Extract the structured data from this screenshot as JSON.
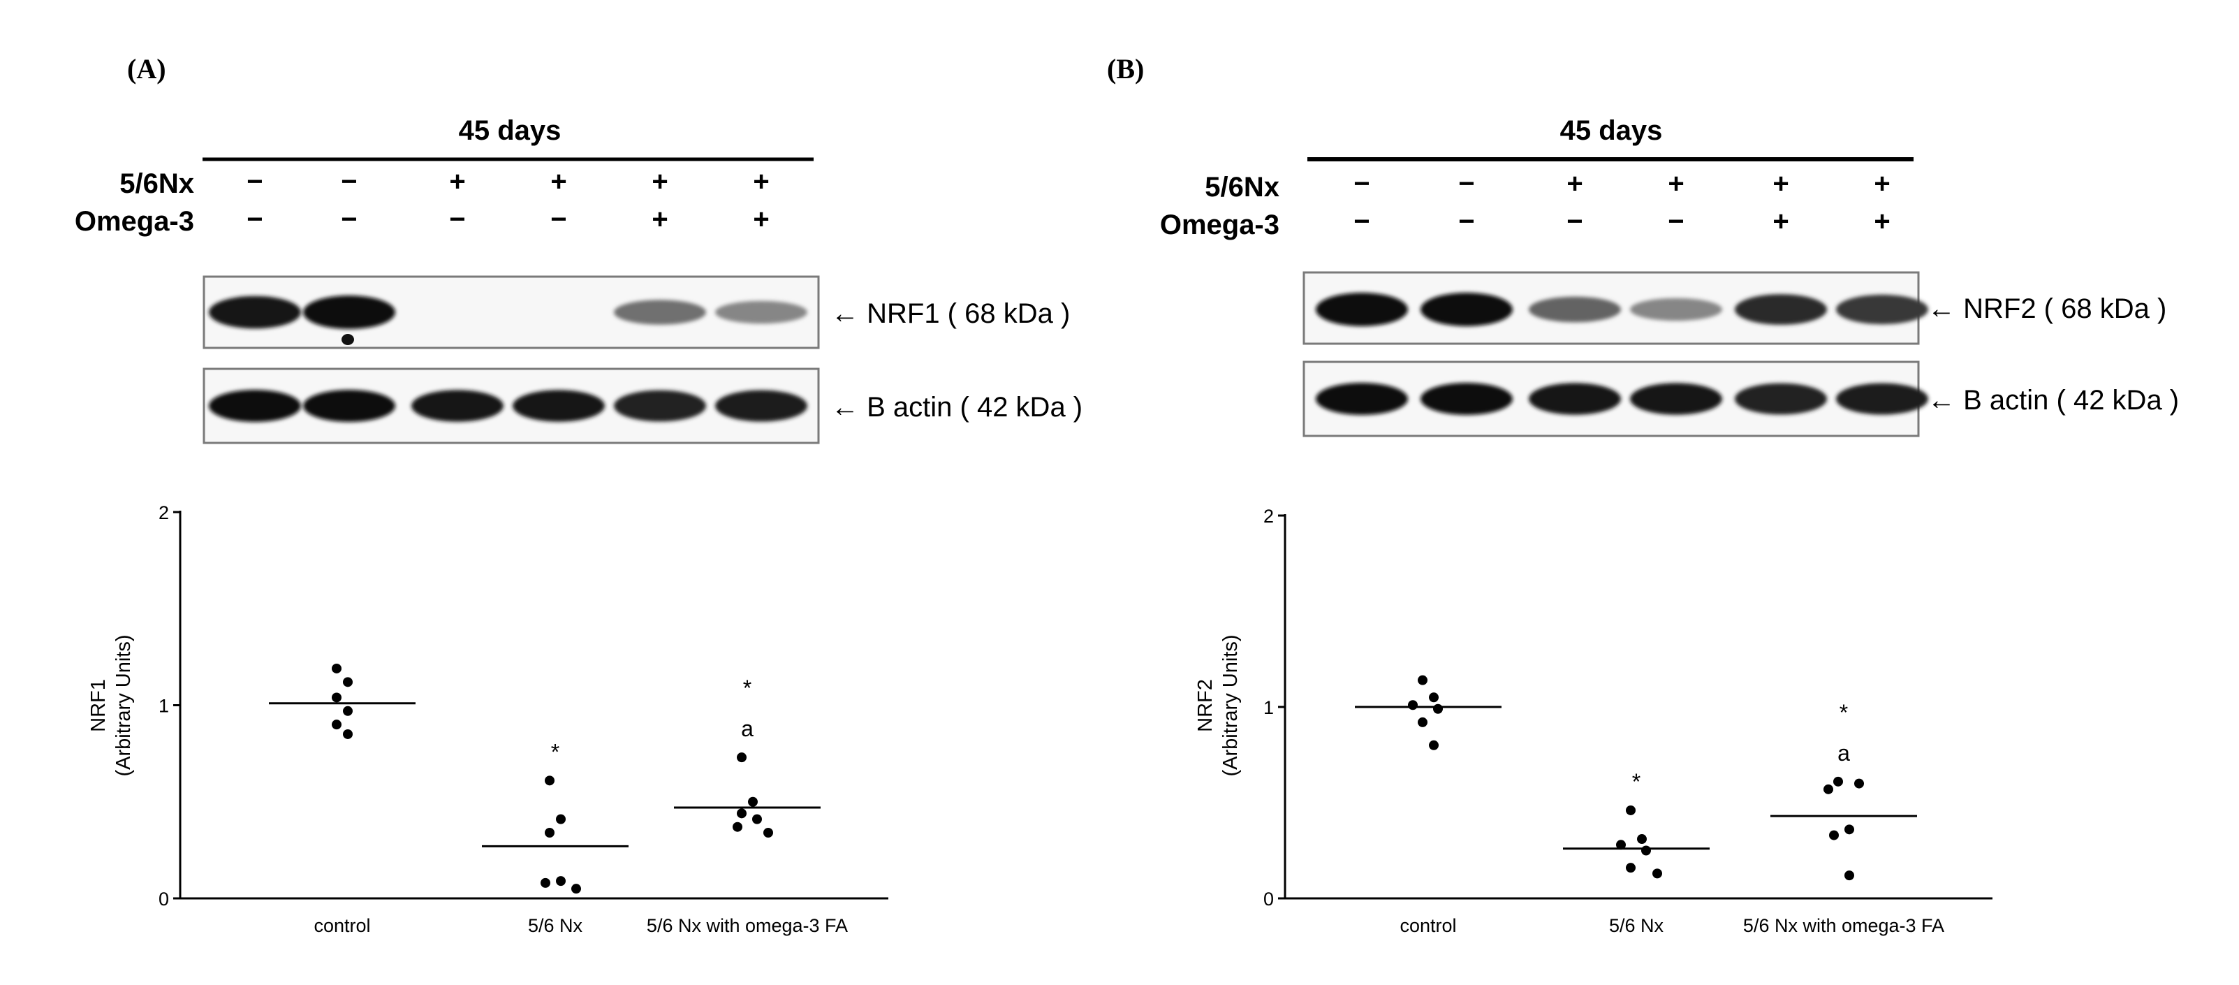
{
  "panels": [
    {
      "label": "(A)",
      "blot": {
        "timepoint": "45 days",
        "rows": [
          {
            "name": "5/6Nx",
            "signs": [
              "−",
              "−",
              "+",
              "+",
              "+",
              "+"
            ]
          },
          {
            "name": "Omega-3",
            "signs": [
              "−",
              "−",
              "−",
              "−",
              "+",
              "+"
            ]
          }
        ],
        "target_label": "← NRF1 ( 68 kDa )",
        "loading_label": "← B actin ( 42 kDa )",
        "target_intensity": [
          0.95,
          1.0,
          0.03,
          0.02,
          0.55,
          0.45
        ],
        "loading_intensity": [
          1.0,
          1.0,
          0.95,
          0.95,
          0.9,
          0.92
        ]
      }
    },
    {
      "label": "(B)",
      "blot": {
        "timepoint": "45 days",
        "rows": [
          {
            "name": "5/6Nx",
            "signs": [
              "−",
              "−",
              "+",
              "+",
              "+",
              "+"
            ]
          },
          {
            "name": "Omega-3",
            "signs": [
              "−",
              "−",
              "−",
              "−",
              "+",
              "+"
            ]
          }
        ],
        "target_label": "← NRF2 ( 68 kDa )",
        "loading_label": "← B actin ( 42 kDa )",
        "target_intensity": [
          1.0,
          1.0,
          0.6,
          0.45,
          0.85,
          0.8
        ],
        "loading_intensity": [
          1.0,
          1.0,
          0.95,
          0.95,
          0.9,
          0.92
        ]
      }
    }
  ],
  "chart_data": [
    {
      "type": "scatter",
      "title": "",
      "ylabel": "NRF1",
      "ylabel2": "(Arbitrary Units)",
      "categories": [
        "control",
        "5/6 Nx",
        "5/6 Nx with omega-3 FA"
      ],
      "ylim": [
        0,
        2
      ],
      "yticks": [
        0,
        1,
        2
      ],
      "points": [
        [
          1.19,
          1.12,
          1.04,
          0.97,
          0.9,
          0.85
        ],
        [
          0.61,
          0.41,
          0.34,
          0.09,
          0.08,
          0.05
        ],
        [
          0.73,
          0.5,
          0.44,
          0.41,
          0.37,
          0.34
        ]
      ],
      "means": [
        1.01,
        0.27,
        0.47
      ],
      "annotations": [
        [],
        [
          "*"
        ],
        [
          "*",
          "a"
        ]
      ]
    },
    {
      "type": "scatter",
      "title": "",
      "ylabel": "NRF2",
      "ylabel2": "(Arbitrary Units)",
      "categories": [
        "control",
        "5/6 Nx",
        "5/6 Nx with omega-3 FA"
      ],
      "ylim": [
        0,
        2
      ],
      "yticks": [
        0,
        1,
        2
      ],
      "points": [
        [
          1.14,
          1.05,
          1.01,
          0.99,
          0.92,
          0.8
        ],
        [
          0.46,
          0.31,
          0.28,
          0.25,
          0.16,
          0.13
        ],
        [
          0.61,
          0.6,
          0.57,
          0.36,
          0.33,
          0.12
        ]
      ],
      "means": [
        1.0,
        0.26,
        0.43
      ],
      "annotations": [
        [],
        [
          "*"
        ],
        [
          "*",
          "a"
        ]
      ]
    }
  ]
}
